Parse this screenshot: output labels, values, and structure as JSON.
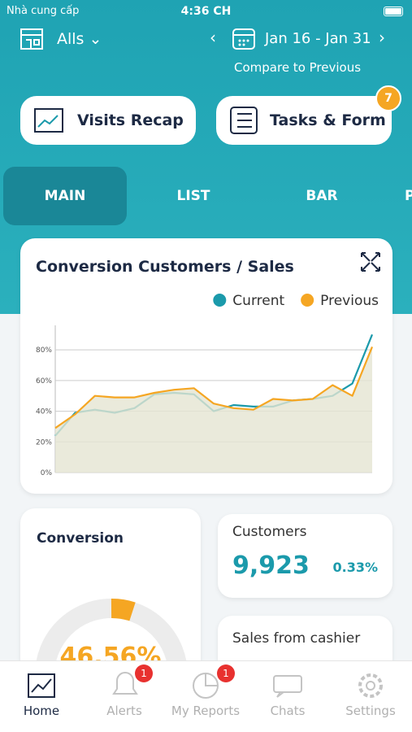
{
  "status_bar": {
    "carrier": "Nhà cung cấp",
    "time": "4:36 CH"
  },
  "header": {
    "store": "Alls",
    "date_range": "Jan 16 - Jan 31",
    "compare": "Compare to Previous"
  },
  "buttons": [
    {
      "label": "Visits Recap"
    },
    {
      "label": "Tasks & Form",
      "badge": "7"
    }
  ],
  "tabs": [
    "MAIN",
    "LIST",
    "BAR",
    "P"
  ],
  "chart_data": {
    "type": "line",
    "title": "Conversion Customers / Sales",
    "categories": [
      null,
      null,
      null,
      null,
      null,
      null,
      null,
      null,
      null,
      null,
      null,
      null,
      null,
      null,
      null,
      null,
      null
    ],
    "series": [
      {
        "name": "Current",
        "color": "#1b9aab",
        "values": [
          24,
          39,
          41,
          39,
          42,
          51,
          52,
          51,
          40,
          44,
          43,
          43,
          47,
          48,
          50,
          58,
          90
        ]
      },
      {
        "name": "Previous",
        "color": "#f5a623",
        "values": [
          29,
          38,
          50,
          49,
          49,
          52,
          54,
          55,
          45,
          42,
          41,
          48,
          47,
          48,
          57,
          50,
          82
        ]
      }
    ],
    "ylim": [
      0,
      96
    ],
    "yticks": [
      {
        "value": 0,
        "label": "0%"
      },
      {
        "value": 20,
        "label": "20%"
      },
      {
        "value": 40,
        "label": "40%"
      },
      {
        "value": 60,
        "label": "60%"
      },
      {
        "value": 80,
        "label": "80%"
      }
    ],
    "grid": true,
    "legend": "top-right"
  },
  "cards": {
    "conversion": {
      "title": "Conversion",
      "value": "46.56%"
    },
    "customers": {
      "title": "Customers",
      "value": "9,923",
      "change": "0.33%"
    },
    "sales": {
      "title": "Sales from cashier"
    }
  },
  "nav": [
    {
      "label": "Home"
    },
    {
      "label": "Alerts",
      "badge": "1"
    },
    {
      "label": "My Reports",
      "badge": "1"
    },
    {
      "label": "Chats"
    },
    {
      "label": "Settings"
    }
  ]
}
